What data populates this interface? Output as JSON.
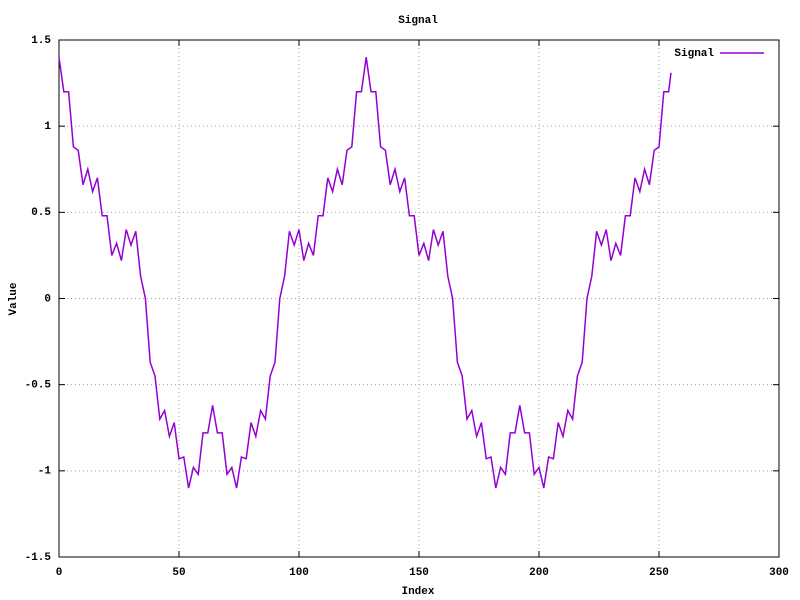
{
  "chart_data": {
    "type": "line",
    "title": "Signal",
    "xlabel": "Index",
    "ylabel": "Value",
    "x": [
      0,
      2,
      4,
      6,
      8,
      10,
      12,
      14,
      16,
      18,
      20,
      22,
      24,
      26,
      28,
      30,
      32,
      34,
      36,
      38,
      40,
      42,
      44,
      46,
      48,
      50,
      52,
      54,
      56,
      58,
      60,
      62,
      64,
      66,
      68,
      70,
      72,
      74,
      76,
      78,
      80,
      82,
      84,
      86,
      88,
      90,
      92,
      94,
      96,
      98,
      100,
      102,
      104,
      106,
      108,
      110,
      112,
      114,
      116,
      118,
      120,
      122,
      124,
      126,
      128,
      130,
      132,
      134,
      136,
      138,
      140,
      142,
      144,
      146,
      148,
      150,
      152,
      154,
      156,
      158,
      160,
      162,
      164,
      166,
      168,
      170,
      172,
      174,
      176,
      178,
      180,
      182,
      184,
      186,
      188,
      190,
      192,
      194,
      196,
      198,
      200,
      202,
      204,
      206,
      208,
      210,
      212,
      214,
      216,
      218,
      220,
      222,
      224,
      226,
      228,
      230,
      232,
      234,
      236,
      238,
      240,
      242,
      244,
      246,
      248,
      250,
      252,
      254,
      255
    ],
    "series": [
      {
        "name": "Signal",
        "color": "#9400d3",
        "values": [
          1.4,
          1.2,
          1.2,
          0.88,
          0.86,
          0.66,
          0.75,
          0.62,
          0.7,
          0.48,
          0.48,
          0.25,
          0.32,
          0.22,
          0.4,
          0.31,
          0.39,
          0.13,
          0.0,
          -0.37,
          -0.45,
          -0.7,
          -0.65,
          -0.8,
          -0.72,
          -0.93,
          -0.92,
          -1.1,
          -0.98,
          -1.02,
          -0.78,
          -0.78,
          -0.62,
          -0.78,
          -0.78,
          -1.02,
          -0.98,
          -1.1,
          -0.92,
          -0.93,
          -0.72,
          -0.8,
          -0.65,
          -0.7,
          -0.45,
          -0.37,
          0.0,
          0.13,
          0.39,
          0.31,
          0.4,
          0.22,
          0.32,
          0.25,
          0.48,
          0.48,
          0.7,
          0.62,
          0.75,
          0.66,
          0.86,
          0.88,
          1.2,
          1.2,
          1.4,
          1.2,
          1.2,
          0.88,
          0.86,
          0.66,
          0.75,
          0.62,
          0.7,
          0.48,
          0.48,
          0.25,
          0.32,
          0.22,
          0.4,
          0.31,
          0.39,
          0.13,
          0.0,
          -0.37,
          -0.45,
          -0.7,
          -0.65,
          -0.8,
          -0.72,
          -0.93,
          -0.92,
          -1.1,
          -0.98,
          -1.02,
          -0.78,
          -0.78,
          -0.62,
          -0.78,
          -0.78,
          -1.02,
          -0.98,
          -1.1,
          -0.92,
          -0.93,
          -0.72,
          -0.8,
          -0.65,
          -0.7,
          -0.45,
          -0.37,
          0.0,
          0.13,
          0.39,
          0.31,
          0.4,
          0.22,
          0.32,
          0.25,
          0.48,
          0.48,
          0.7,
          0.62,
          0.75,
          0.66,
          0.86,
          0.88,
          1.2,
          1.2,
          1.31
        ]
      }
    ],
    "xlim": [
      0,
      300
    ],
    "xticks": [
      0,
      50,
      100,
      150,
      200,
      250,
      300
    ],
    "ylim": [
      -1.5,
      1.5
    ],
    "yticks": [
      -1.5,
      -1,
      -0.5,
      0,
      0.5,
      1,
      1.5
    ],
    "grid": true,
    "legend": "top-right"
  }
}
